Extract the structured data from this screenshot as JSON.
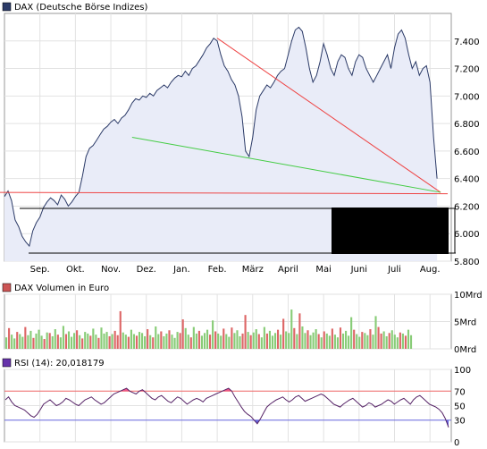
{
  "chart_data": [
    {
      "type": "area",
      "legend": "DAX (Deutsche Börse Indizes)",
      "colors": {
        "line": "#2b3a67",
        "fill": "#e9ecf8",
        "marker": "#2b3a67"
      },
      "ylim": [
        5800,
        7600
      ],
      "y_ticks": [
        "7.400",
        "7.200",
        "7.000",
        "6.800",
        "6.600",
        "6.400",
        "6.200",
        "6.000",
        "5.800"
      ],
      "y_tick_values": [
        7400,
        7200,
        7000,
        6800,
        6600,
        6400,
        6200,
        6000,
        5800
      ],
      "x_ticks": [
        "Sep.",
        "Okt.",
        "Nov.",
        "Dez.",
        "Jan.",
        "Feb.",
        "März",
        "April",
        "Mai",
        "Juni",
        "Juli",
        "Aug."
      ],
      "x_tick_positions": [
        1.0,
        2.0,
        3.0,
        4.0,
        5.0,
        6.0,
        7.0,
        8.0,
        9.0,
        10.0,
        11.0,
        12.0
      ],
      "xlim": [
        0.0,
        12.6
      ],
      "series": [
        {
          "values_x": [
            0.0,
            0.1,
            0.2,
            0.3,
            0.4,
            0.5,
            0.6,
            0.7,
            0.8,
            0.9,
            1.0,
            1.1,
            1.2,
            1.3,
            1.4,
            1.5,
            1.6,
            1.7,
            1.8,
            1.9,
            2.0,
            2.1,
            2.2,
            2.3,
            2.4,
            2.5,
            2.6,
            2.7,
            2.8,
            2.9,
            3.0,
            3.1,
            3.2,
            3.3,
            3.4,
            3.5,
            3.6,
            3.7,
            3.8,
            3.9,
            4.0,
            4.1,
            4.2,
            4.3,
            4.4,
            4.5,
            4.6,
            4.7,
            4.8,
            4.9,
            5.0,
            5.1,
            5.2,
            5.3,
            5.4,
            5.5,
            5.6,
            5.7,
            5.8,
            5.9,
            6.0,
            6.1,
            6.2,
            6.3,
            6.4,
            6.5,
            6.6,
            6.7,
            6.8,
            6.9,
            7.0,
            7.1,
            7.2,
            7.3,
            7.4,
            7.5,
            7.6,
            7.7,
            7.8,
            7.9,
            8.0,
            8.1,
            8.2,
            8.3,
            8.4,
            8.5,
            8.6,
            8.7,
            8.8,
            8.9,
            9.0,
            9.1,
            9.2,
            9.3,
            9.4,
            9.5,
            9.6,
            9.7,
            9.8,
            9.9,
            10.0,
            10.1,
            10.2,
            10.3,
            10.4,
            10.5,
            10.6,
            10.7,
            10.8,
            10.9,
            11.0,
            11.1,
            11.2,
            11.3,
            11.4,
            11.5,
            11.6,
            11.7,
            11.8,
            11.9,
            12.0,
            12.1,
            12.2
          ],
          "values_y": [
            6270,
            6310,
            6240,
            6100,
            6050,
            5980,
            5940,
            5910,
            6020,
            6080,
            6120,
            6190,
            6230,
            6260,
            6240,
            6210,
            6280,
            6250,
            6200,
            6230,
            6270,
            6300,
            6420,
            6560,
            6620,
            6640,
            6680,
            6720,
            6760,
            6780,
            6810,
            6830,
            6800,
            6840,
            6860,
            6900,
            6950,
            6980,
            6970,
            7000,
            6990,
            7020,
            7000,
            7040,
            7060,
            7080,
            7060,
            7100,
            7130,
            7150,
            7140,
            7180,
            7150,
            7200,
            7220,
            7260,
            7300,
            7350,
            7380,
            7420,
            7400,
            7300,
            7220,
            7180,
            7120,
            7080,
            7000,
            6850,
            6600,
            6560,
            6700,
            6900,
            7000,
            7040,
            7080,
            7060,
            7100,
            7150,
            7180,
            7200,
            7300,
            7400,
            7480,
            7500,
            7470,
            7350,
            7200,
            7100,
            7150,
            7250,
            7380,
            7300,
            7200,
            7150,
            7250,
            7300,
            7280,
            7200,
            7150,
            7250,
            7300,
            7280,
            7200,
            7150,
            7100,
            7150,
            7200,
            7250,
            7300,
            7200,
            7350,
            7450,
            7480,
            7420,
            7300,
            7200,
            7250,
            7150,
            7200,
            7220,
            7100,
            6700,
            6400
          ]
        }
      ],
      "trendlines": [
        {
          "color": "#ee4444",
          "points": [
            [
              6.0,
              7420
            ],
            [
              12.3,
              6300
            ]
          ]
        },
        {
          "color": "#44cc44",
          "points": [
            [
              3.6,
              6700
            ],
            [
              12.3,
              6300
            ]
          ]
        },
        {
          "color": "#ee4444",
          "points": [
            [
              -0.2,
              6300
            ],
            [
              12.5,
              6290
            ]
          ]
        }
      ]
    },
    {
      "type": "bar",
      "legend": "DAX Volumen in Euro",
      "colors": {
        "up": "#88cc77",
        "down": "#dd6666",
        "marker": "#cc5555"
      },
      "ylim": [
        0,
        10
      ],
      "y_ticks": [
        "10Mrd",
        "5Mrd",
        "0Mrd"
      ],
      "y_tick_values": [
        10,
        5,
        0
      ],
      "bar_count": 150,
      "values": [
        2.1,
        3.8,
        2.6,
        1.9,
        3.1,
        2.7,
        2.2,
        4.0,
        2.5,
        3.3,
        2.0,
        2.8,
        3.5,
        2.4,
        1.8,
        3.0,
        2.9,
        2.3,
        3.6,
        2.6,
        2.1,
        4.2,
        2.7,
        3.2,
        2.2,
        2.9,
        3.4,
        2.5,
        1.9,
        3.1,
        2.8,
        2.4,
        3.7,
        2.6,
        2.0,
        3.9,
        2.8,
        3.1,
        2.3,
        2.7,
        3.3,
        2.5,
        6.9,
        3.0,
        2.6,
        2.2,
        3.5,
        2.7,
        2.4,
        3.1,
        2.9,
        2.3,
        3.6,
        2.5,
        2.1,
        4.1,
        2.7,
        3.2,
        2.3,
        2.8,
        3.4,
        2.6,
        2.0,
        3.1,
        2.9,
        5.4,
        3.8,
        2.6,
        2.1,
        4.0,
        2.8,
        3.3,
        2.4,
        2.9,
        3.5,
        2.6,
        5.2,
        3.2,
        2.8,
        2.4,
        3.7,
        2.7,
        2.2,
        3.9,
        2.9,
        3.4,
        2.3,
        2.8,
        6.2,
        3.1,
        2.5,
        3.0,
        3.6,
        2.7,
        2.1,
        4.0,
        2.8,
        3.3,
        2.4,
        2.9,
        3.5,
        2.6,
        5.5,
        3.2,
        2.9,
        7.2,
        3.8,
        2.7,
        6.5,
        4.1,
        2.9,
        3.4,
        2.5,
        3.0,
        3.6,
        2.7,
        2.1,
        3.2,
        2.8,
        2.4,
        3.7,
        2.6,
        2.1,
        3.9,
        2.8,
        3.3,
        2.4,
        5.8,
        3.5,
        2.7,
        2.2,
        3.1,
        2.9,
        2.5,
        3.6,
        2.6,
        6.0,
        4.0,
        2.8,
        3.2,
        2.3,
        2.9,
        3.4,
        2.6,
        2.1,
        3.0,
        2.8,
        2.4,
        3.5,
        2.5
      ],
      "up_flags": [
        1,
        0,
        1,
        1,
        0,
        1,
        1,
        0,
        1,
        1,
        0,
        1,
        1,
        1,
        0,
        1,
        0,
        1,
        1,
        0,
        1,
        1,
        0,
        1,
        1,
        1,
        0,
        1,
        0,
        1,
        1,
        0,
        1,
        1,
        0,
        1,
        1,
        1,
        0,
        1,
        0,
        0,
        0,
        1,
        1,
        0,
        1,
        1,
        0,
        1,
        1,
        1,
        0,
        1,
        0,
        1,
        1,
        0,
        1,
        1,
        0,
        1,
        1,
        1,
        0,
        0,
        1,
        1,
        0,
        1,
        1,
        0,
        1,
        1,
        1,
        0,
        1,
        0,
        1,
        1,
        0,
        1,
        1,
        0,
        1,
        1,
        1,
        0,
        0,
        1,
        0,
        1,
        1,
        0,
        1,
        1,
        0,
        1,
        1,
        1,
        0,
        1,
        0,
        1,
        1,
        1,
        0,
        1,
        0,
        1,
        1,
        0,
        1,
        1,
        1,
        0,
        1,
        0,
        1,
        1,
        0,
        1,
        1,
        0,
        1,
        1,
        1,
        1,
        0,
        1,
        1,
        0,
        1,
        1,
        0,
        1,
        1,
        0,
        0,
        1,
        1,
        0,
        1,
        1,
        1,
        0,
        1,
        0,
        1,
        1
      ]
    },
    {
      "type": "line",
      "legend": "RSI (14): 20,018179",
      "colors": {
        "line": "#552266",
        "above": "#ee5588",
        "below": "#6666dd",
        "marker": "#6633aa"
      },
      "ylim": [
        0,
        100
      ],
      "y_ticks": [
        "100",
        "70",
        "50",
        "30",
        "0"
      ],
      "y_tick_values": [
        100,
        70,
        50,
        30,
        0
      ],
      "reference_lines": [
        {
          "value": 70,
          "color": "#ee6666"
        },
        {
          "value": 30,
          "color": "#6666dd"
        }
      ],
      "values": [
        58,
        62,
        55,
        50,
        48,
        46,
        44,
        40,
        36,
        34,
        38,
        45,
        52,
        55,
        58,
        54,
        50,
        52,
        55,
        60,
        58,
        55,
        52,
        50,
        54,
        58,
        60,
        62,
        58,
        55,
        52,
        54,
        58,
        62,
        66,
        68,
        70,
        72,
        74,
        70,
        68,
        66,
        70,
        72,
        68,
        64,
        60,
        58,
        62,
        64,
        60,
        56,
        54,
        58,
        62,
        60,
        56,
        52,
        55,
        58,
        60,
        58,
        55,
        60,
        62,
        64,
        66,
        68,
        70,
        72,
        74,
        70,
        62,
        55,
        48,
        42,
        38,
        35,
        30,
        25,
        32,
        40,
        48,
        52,
        55,
        58,
        60,
        62,
        58,
        55,
        58,
        62,
        64,
        60,
        56,
        58,
        60,
        62,
        64,
        66,
        64,
        60,
        56,
        52,
        50,
        48,
        52,
        55,
        58,
        60,
        56,
        52,
        48,
        50,
        54,
        52,
        48,
        50,
        52,
        55,
        58,
        56,
        52,
        55,
        58,
        60,
        56,
        52,
        58,
        62,
        64,
        60,
        56,
        52,
        50,
        48,
        45,
        40,
        32,
        20
      ]
    }
  ]
}
